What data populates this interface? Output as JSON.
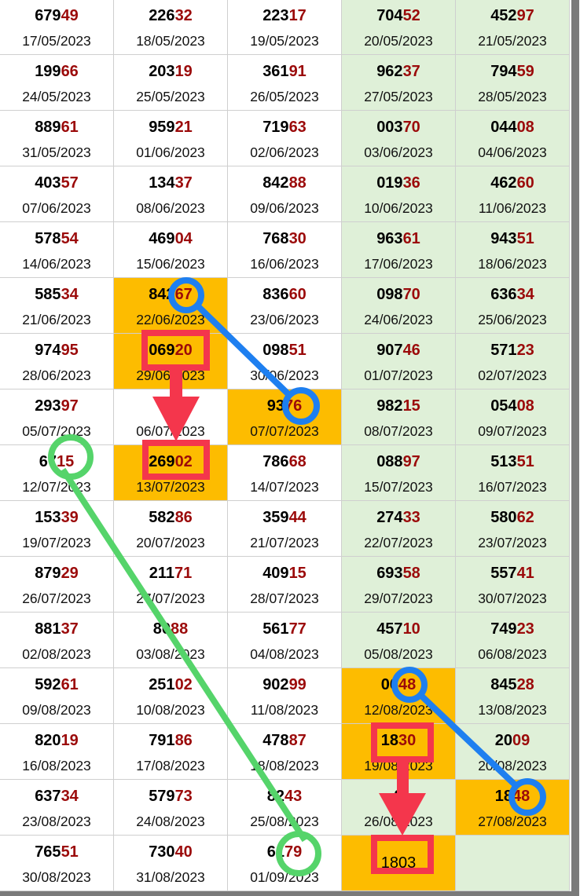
{
  "colors": {
    "highlight": "#fdbc00",
    "weekend": "#dff0d8",
    "suffix": "#9b0a0a",
    "blue_mark": "#1e7ff0",
    "green_mark": "#55d46a",
    "red_mark": "#f4364c"
  },
  "rows": [
    [
      {
        "p": "679",
        "s": "49",
        "d": "17/05/2023"
      },
      {
        "p": "226",
        "s": "32",
        "d": "18/05/2023"
      },
      {
        "p": "223",
        "s": "17",
        "d": "19/05/2023"
      },
      {
        "p": "704",
        "s": "52",
        "d": "20/05/2023"
      },
      {
        "p": "452",
        "s": "97",
        "d": "21/05/2023"
      }
    ],
    [
      {
        "p": "199",
        "s": "66",
        "d": "24/05/2023"
      },
      {
        "p": "203",
        "s": "19",
        "d": "25/05/2023"
      },
      {
        "p": "361",
        "s": "91",
        "d": "26/05/2023"
      },
      {
        "p": "962",
        "s": "37",
        "d": "27/05/2023"
      },
      {
        "p": "794",
        "s": "59",
        "d": "28/05/2023"
      }
    ],
    [
      {
        "p": "889",
        "s": "61",
        "d": "31/05/2023"
      },
      {
        "p": "959",
        "s": "21",
        "d": "01/06/2023"
      },
      {
        "p": "719",
        "s": "63",
        "d": "02/06/2023"
      },
      {
        "p": "003",
        "s": "70",
        "d": "03/06/2023"
      },
      {
        "p": "044",
        "s": "08",
        "d": "04/06/2023"
      }
    ],
    [
      {
        "p": "403",
        "s": "57",
        "d": "07/06/2023"
      },
      {
        "p": "134",
        "s": "37",
        "d": "08/06/2023"
      },
      {
        "p": "842",
        "s": "88",
        "d": "09/06/2023"
      },
      {
        "p": "019",
        "s": "36",
        "d": "10/06/2023"
      },
      {
        "p": "462",
        "s": "60",
        "d": "11/06/2023"
      }
    ],
    [
      {
        "p": "578",
        "s": "54",
        "d": "14/06/2023"
      },
      {
        "p": "469",
        "s": "04",
        "d": "15/06/2023"
      },
      {
        "p": "768",
        "s": "30",
        "d": "16/06/2023"
      },
      {
        "p": "963",
        "s": "61",
        "d": "17/06/2023"
      },
      {
        "p": "943",
        "s": "51",
        "d": "18/06/2023"
      }
    ],
    [
      {
        "p": "585",
        "s": "34",
        "d": "21/06/2023"
      },
      {
        "p": "842",
        "s": "67",
        "d": "22/06/2023",
        "hl": true
      },
      {
        "p": "836",
        "s": "60",
        "d": "23/06/2023"
      },
      {
        "p": "098",
        "s": "70",
        "d": "24/06/2023"
      },
      {
        "p": "636",
        "s": "34",
        "d": "25/06/2023"
      }
    ],
    [
      {
        "p": "974",
        "s": "95",
        "d": "28/06/2023"
      },
      {
        "p": "069",
        "s": "20",
        "d": "29/06/2023",
        "hl": true
      },
      {
        "p": "098",
        "s": "51",
        "d": "30/06/2023"
      },
      {
        "p": "907",
        "s": "46",
        "d": "01/07/2023"
      },
      {
        "p": "571",
        "s": "23",
        "d": "02/07/2023"
      }
    ],
    [
      {
        "p": "293",
        "s": "97",
        "d": "05/07/2023"
      },
      {
        "p": "44",
        "s": "",
        "d": "06/07/2023"
      },
      {
        "p": "93",
        "s": "76",
        "d": "07/07/2023",
        "hl": true
      },
      {
        "p": "982",
        "s": "15",
        "d": "08/07/2023"
      },
      {
        "p": "054",
        "s": "08",
        "d": "09/07/2023"
      }
    ],
    [
      {
        "p": "67",
        "s": "15",
        "d": "12/07/2023"
      },
      {
        "p": "269",
        "s": "02",
        "d": "13/07/2023",
        "hl": true
      },
      {
        "p": "786",
        "s": "68",
        "d": "14/07/2023"
      },
      {
        "p": "088",
        "s": "97",
        "d": "15/07/2023"
      },
      {
        "p": "513",
        "s": "51",
        "d": "16/07/2023"
      }
    ],
    [
      {
        "p": "153",
        "s": "39",
        "d": "19/07/2023"
      },
      {
        "p": "582",
        "s": "86",
        "d": "20/07/2023"
      },
      {
        "p": "359",
        "s": "44",
        "d": "21/07/2023"
      },
      {
        "p": "274",
        "s": "33",
        "d": "22/07/2023"
      },
      {
        "p": "580",
        "s": "62",
        "d": "23/07/2023"
      }
    ],
    [
      {
        "p": "879",
        "s": "29",
        "d": "26/07/2023"
      },
      {
        "p": "211",
        "s": "71",
        "d": "27/07/2023"
      },
      {
        "p": "409",
        "s": "15",
        "d": "28/07/2023"
      },
      {
        "p": "693",
        "s": "58",
        "d": "29/07/2023"
      },
      {
        "p": "557",
        "s": "41",
        "d": "30/07/2023"
      }
    ],
    [
      {
        "p": "881",
        "s": "37",
        "d": "02/08/2023"
      },
      {
        "p": "80",
        "s": "88",
        "d": "03/08/2023"
      },
      {
        "p": "561",
        "s": "77",
        "d": "04/08/2023"
      },
      {
        "p": "457",
        "s": "10",
        "d": "05/08/2023"
      },
      {
        "p": "749",
        "s": "23",
        "d": "06/08/2023"
      }
    ],
    [
      {
        "p": "592",
        "s": "61",
        "d": "09/08/2023"
      },
      {
        "p": "251",
        "s": "02",
        "d": "10/08/2023"
      },
      {
        "p": "902",
        "s": "99",
        "d": "11/08/2023"
      },
      {
        "p": "06",
        "s": "48",
        "d": "12/08/2023",
        "hl": true
      },
      {
        "p": "845",
        "s": "28",
        "d": "13/08/2023"
      }
    ],
    [
      {
        "p": "820",
        "s": "19",
        "d": "16/08/2023"
      },
      {
        "p": "791",
        "s": "86",
        "d": "17/08/2023"
      },
      {
        "p": "478",
        "s": "87",
        "d": "18/08/2023"
      },
      {
        "p": "18",
        "s": "30",
        "d": "19/08/2023",
        "hl": true
      },
      {
        "p": "20",
        "s": "09",
        "d": "20/08/2023"
      }
    ],
    [
      {
        "p": "637",
        "s": "34",
        "d": "23/08/2023"
      },
      {
        "p": "579",
        "s": "73",
        "d": "24/08/2023"
      },
      {
        "p": "82",
        "s": "43",
        "d": "25/08/2023"
      },
      {
        "p": "9",
        "s": "",
        "d": "26/08/2023"
      },
      {
        "p": "18",
        "s": "48",
        "d": "27/08/2023",
        "hl": true
      }
    ],
    [
      {
        "p": "765",
        "s": "51",
        "d": "30/08/2023"
      },
      {
        "p": "730",
        "s": "40",
        "d": "31/08/2023"
      },
      {
        "p": "61",
        "s": "79",
        "d": "01/09/2023"
      },
      {
        "p": "1803",
        "s": "",
        "d": "",
        "hl": true,
        "plain": true
      },
      {
        "p": "",
        "s": "",
        "d": ""
      }
    ]
  ]
}
